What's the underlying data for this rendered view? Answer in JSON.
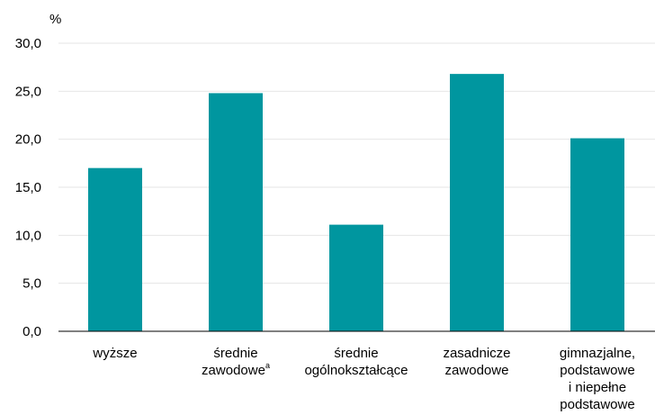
{
  "chart_data": {
    "type": "bar",
    "unit_label": "%",
    "categories": [
      [
        "wyższe"
      ],
      [
        "średnie",
        "zawodowe"
      ],
      [
        "średnie",
        "ogólnokształcące"
      ],
      [
        "zasadnicze",
        "zawodowe"
      ],
      [
        "gimnazjalne,",
        "podstawowe",
        "i niepełne",
        "podstawowe"
      ]
    ],
    "category_superscripts": [
      "",
      "a",
      "",
      "",
      ""
    ],
    "values": [
      17.0,
      24.8,
      11.1,
      26.8,
      20.1
    ],
    "yticks": [
      "0,0",
      "5,0",
      "10,0",
      "15,0",
      "20,0",
      "25,0",
      "30,0"
    ],
    "ylim": [
      0,
      30
    ],
    "grid": true,
    "colors": {
      "bar": "#00969f",
      "grid": "#e6e6e6",
      "axis": "#000000"
    }
  }
}
